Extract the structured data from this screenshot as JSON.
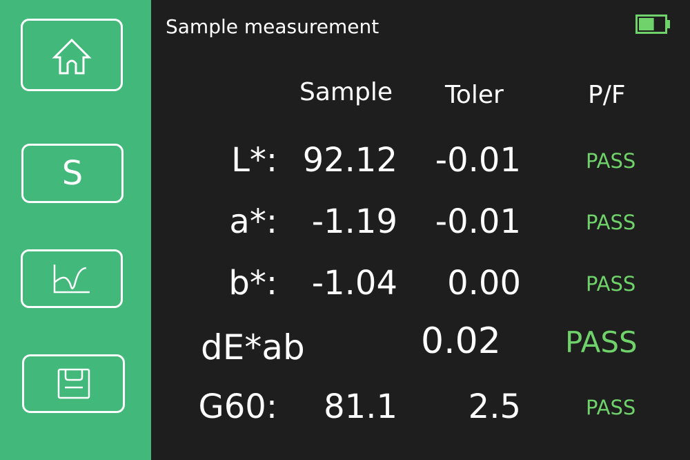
{
  "header": {
    "title": "Sample measurement",
    "battery_level": 0.6,
    "battery_color": "#6fd26a"
  },
  "sidebar": {
    "color": "#42b97a",
    "buttons": [
      {
        "icon": "home-icon"
      },
      {
        "label": "S"
      },
      {
        "icon": "chart-icon"
      },
      {
        "icon": "save-icon"
      }
    ]
  },
  "table": {
    "columns": [
      "Sample",
      "Toler",
      "P/F"
    ],
    "rows": [
      {
        "label": "L*:",
        "sample": "92.12",
        "toler": "-0.01",
        "result": "PASS"
      },
      {
        "label": "a*:",
        "sample": "-1.19",
        "toler": "-0.01",
        "result": "PASS"
      },
      {
        "label": "b*:",
        "sample": "-1.04",
        "toler": "0.00",
        "result": "PASS"
      }
    ],
    "de": {
      "label": "dE*ab",
      "value": "0.02",
      "result": "PASS"
    },
    "gloss": {
      "label": "G60:",
      "sample": "81.1",
      "toler": "2.5",
      "result": "PASS"
    },
    "pass_color": "#6fd26a"
  }
}
